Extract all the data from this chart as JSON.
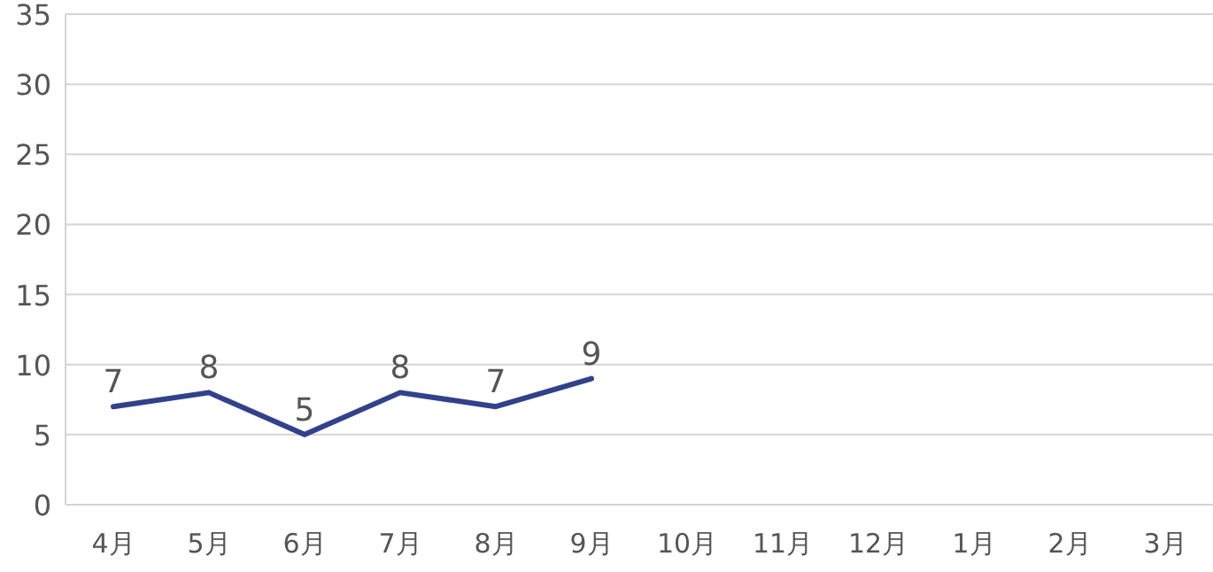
{
  "chart_data": {
    "type": "line",
    "categories": [
      "4月",
      "5月",
      "6月",
      "7月",
      "8月",
      "9月",
      "10月",
      "11月",
      "12月",
      "1月",
      "2月",
      "3月"
    ],
    "series": [
      {
        "color": "#31428a",
        "values": [
          7,
          8,
          5,
          8,
          7,
          9,
          null,
          null,
          null,
          null,
          null,
          null
        ]
      }
    ],
    "ylim": [
      0,
      35
    ],
    "yticks": [
      0,
      5,
      10,
      15,
      20,
      25,
      30,
      35
    ],
    "grid": "y",
    "data_labels": true
  }
}
